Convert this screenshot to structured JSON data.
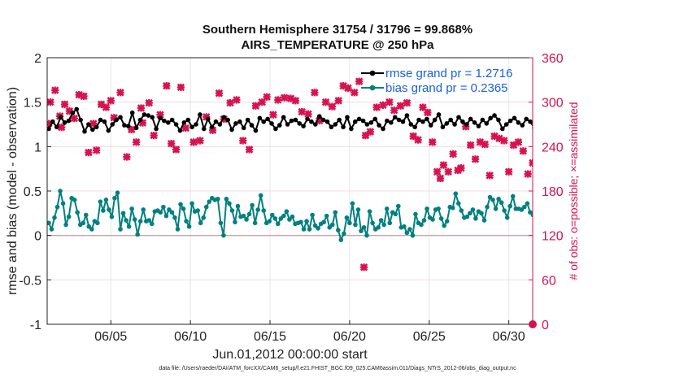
{
  "figure": {
    "title_line1": "Southern Hemisphere 31754 / 31796 = 99.868%",
    "title_line2": "AIRS_TEMPERATURE @ 250 hPa",
    "footnote": "data file: /Users/raeder/DAI/ATM_forcXX/CAM6_setup/f.e21.FHIST_BGC.f09_025.CAM6assim.011/Diags_NTrS_2012-06/obs_diag_output.nc"
  },
  "chart_data": {
    "type": "line",
    "xlabel": "Jun.01,2012 00:00:00 start",
    "ylabel_left": "rmse and bias (model - observation)",
    "ylabel_right": "# of obs: o=possible; ×=assimilated",
    "x_range_days": [
      0,
      30.5
    ],
    "xticks": [
      {
        "day": 4,
        "label": "06/05"
      },
      {
        "day": 9,
        "label": "06/10"
      },
      {
        "day": 14,
        "label": "06/15"
      },
      {
        "day": 19,
        "label": "06/20"
      },
      {
        "day": 24,
        "label": "06/25"
      },
      {
        "day": 29,
        "label": "06/30"
      }
    ],
    "ylim_left": [
      -1,
      2
    ],
    "yticks_left": [
      -1,
      -0.5,
      0,
      0.5,
      1,
      1.5,
      2
    ],
    "ytick_labels_left": [
      "-1",
      "-0.5",
      "0",
      "0.5",
      "1",
      "1.5",
      "2"
    ],
    "ylim_right": [
      0,
      360
    ],
    "yticks_right": [
      0,
      60,
      120,
      180,
      240,
      300,
      360
    ],
    "grid": true,
    "legend_position": "top-right",
    "zero_line": true,
    "time_step_days": 0.25,
    "series": [
      {
        "name": "rmse grand pr = 1.2716",
        "axis": "left",
        "color": "#000000",
        "marker": "circle",
        "values": [
          1.2,
          1.28,
          1.22,
          1.33,
          1.27,
          1.29,
          1.38,
          1.42,
          1.3,
          1.17,
          1.25,
          1.19,
          1.22,
          1.3,
          1.28,
          1.18,
          1.25,
          1.3,
          1.33,
          1.24,
          1.23,
          1.38,
          1.21,
          1.3,
          1.36,
          1.35,
          1.33,
          1.2,
          1.32,
          1.29,
          1.27,
          1.3,
          1.25,
          1.18,
          1.27,
          1.3,
          1.22,
          1.25,
          1.36,
          1.2,
          1.31,
          1.22,
          1.28,
          1.25,
          1.33,
          1.3,
          1.19,
          1.26,
          1.28,
          1.21,
          1.3,
          1.24,
          1.18,
          1.32,
          1.28,
          1.31,
          1.26,
          1.2,
          1.24,
          1.33,
          1.25,
          1.29,
          1.3,
          1.26,
          1.23,
          1.31,
          1.28,
          1.25,
          1.34,
          1.3,
          1.28,
          1.22,
          1.25,
          1.3,
          1.22,
          1.33,
          1.2,
          1.28,
          1.31,
          1.29,
          1.25,
          1.27,
          1.31,
          1.24,
          1.2,
          1.29,
          1.27,
          1.33,
          1.3,
          1.28,
          1.35,
          1.25,
          1.22,
          1.3,
          1.28,
          1.31,
          1.24,
          1.3,
          1.36,
          1.22,
          1.26,
          1.3,
          1.25,
          1.33,
          1.28,
          1.25,
          1.31,
          1.27,
          1.23,
          1.3,
          1.26,
          1.32,
          1.35,
          1.3,
          1.2,
          1.25,
          1.29,
          1.32,
          1.27,
          1.24,
          1.31,
          1.28,
          1.21,
          1.3,
          1.26,
          1.33,
          1.29,
          1.24,
          1.3,
          1.27,
          1.25,
          1.28,
          1.31,
          1.3,
          1.27,
          1.22,
          1.28,
          1.3,
          1.23,
          1.28,
          1.26,
          1.31,
          1.29,
          1.32,
          1.2,
          1.3,
          1.25,
          1.27,
          1.28,
          1.25,
          1.24,
          1.29,
          1.3,
          1.27,
          1.22,
          1.31,
          1.28,
          1.27,
          1.32,
          1.31,
          1.28,
          1.25,
          1.31,
          1.32,
          1.25,
          1.27,
          1.28,
          1.3,
          1.33,
          1.26,
          1.25,
          1.28,
          1.3,
          1.22,
          1.28,
          1.25,
          1.28,
          1.3,
          1.29,
          1.31,
          1.33,
          1.37,
          1.39,
          1.36,
          1.3,
          1.24,
          1.37,
          1.3,
          1.25,
          1.31,
          1.31,
          1.28,
          1.3,
          1.26,
          1.29,
          1.31,
          1.27,
          1.28,
          1.29,
          1.31,
          1.24,
          1.2,
          1.28,
          1.3,
          1.26,
          1.28,
          1.29,
          1.25,
          1.28,
          1.26,
          1.22,
          1.28,
          1.25,
          1.23,
          1.28,
          1.33,
          1.3,
          1.25,
          1.28,
          1.31,
          1.26,
          1.28,
          1.23,
          1.25,
          1.3,
          1.28,
          1.25,
          1.29,
          1.31,
          1.34,
          1.3,
          1.28,
          1.24,
          1.28,
          1.25,
          1.3,
          1.28,
          1.25,
          1.26,
          1.28,
          1.3,
          1.32,
          1.28,
          1.22,
          1.28,
          1.25,
          1.3,
          1.26,
          1.29,
          1.38,
          1.33,
          1.28,
          1.31,
          1.27,
          1.25,
          1.3,
          1.33,
          1.28,
          1.24,
          1.3,
          1.28,
          1.35,
          1.32,
          1.27,
          1.3,
          1.36,
          1.28,
          1.24,
          1.3,
          1.25,
          1.21,
          1.27,
          1.3,
          1.25,
          1.28,
          1.31,
          1.29,
          1.22,
          1.28,
          1.33,
          1.3,
          1.26,
          1.28,
          1.31,
          1.2,
          1.27,
          1.29,
          1.31,
          1.28,
          1.3,
          1.22,
          1.25,
          1.3,
          1.29,
          1.33,
          1.26,
          1.29,
          1.32,
          1.28,
          1.25,
          1.3,
          1.29,
          1.26,
          1.32,
          1.29,
          1.25,
          1.31,
          1.27,
          1.3,
          1.24,
          1.27,
          1.3,
          1.2,
          1.28,
          1.25,
          1.3,
          1.27,
          1.33,
          1.3,
          1.36,
          1.28,
          1.27,
          1.25,
          1.28,
          1.3,
          1.33,
          1.22,
          1.27,
          1.22,
          1.28,
          1.25,
          1.34,
          1.3,
          1.25,
          1.3,
          1.31,
          1.2,
          1.25,
          1.29,
          1.28,
          1.26,
          1.38,
          1.33,
          1.35,
          1.29,
          1.32,
          1.24,
          1.26,
          1.22,
          1.28,
          1.25,
          1.3,
          1.27,
          1.33,
          1.28,
          1.25,
          1.3,
          1.27,
          1.23,
          1.28,
          1.26,
          1.3,
          1.28,
          1.35,
          1.33,
          1.28,
          1.26,
          1.3,
          1.24,
          1.27,
          1.25,
          1.31,
          1.29,
          1.25,
          1.3,
          1.34,
          1.28,
          1.31,
          1.27,
          1.25,
          1.28,
          1.3,
          1.26,
          1.22,
          1.25,
          1.3,
          1.28,
          1.33,
          1.36,
          1.31,
          1.25,
          1.28,
          1.33,
          1.3,
          1.27,
          1.25,
          1.29,
          1.22,
          1.26,
          1.24,
          1.3,
          1.31,
          1.29,
          1.25,
          1.3,
          1.26,
          1.28,
          1.33,
          1.3,
          1.25,
          1.27,
          1.22,
          1.28,
          1.26,
          1.25,
          1.3,
          1.28,
          1.31,
          1.26,
          1.23,
          1.25,
          1.28,
          1.25,
          1.3,
          1.27,
          1.33,
          1.28,
          1.25,
          1.3,
          1.26,
          1.24,
          1.3,
          1.28,
          1.25,
          1.26,
          1.31,
          1.29,
          1.27,
          1.24,
          1.2,
          1.26,
          1.3,
          1.28,
          1.25,
          1.3,
          1.28,
          1.31,
          1.27,
          1.22,
          1.28,
          1.3,
          1.25,
          1.27,
          1.28,
          1.25,
          1.29,
          1.27,
          1.32,
          1.3,
          1.25,
          1.28,
          1.31,
          1.27,
          1.25,
          1.3,
          1.28,
          1.25,
          1.23,
          1.29,
          1.25,
          1.28,
          1.3,
          1.26,
          1.23,
          1.28,
          1.27,
          1.33,
          1.3,
          1.26,
          1.28,
          1.24,
          1.3,
          1.29,
          1.25,
          1.27,
          1.31,
          1.28,
          1.22,
          1.25,
          1.29,
          1.31,
          1.28,
          1.25
        ]
      },
      {
        "name": "bias grand pr = 0.2365",
        "axis": "left",
        "color": "#008080",
        "marker": "circle",
        "values": [
          0.14,
          0.07,
          0.2,
          0.32,
          0.5,
          0.36,
          0.12,
          0.21,
          0.42,
          0.4,
          0.26,
          0.12,
          0.14,
          0.23,
          0.1,
          0.07,
          0.16,
          0.14,
          0.38,
          0.28,
          0.4,
          0.29,
          0.21,
          0.42,
          0.48,
          0.07,
          0.25,
          0.17,
          0.1,
          0.3,
          0.18,
          0.01,
          0.16,
          0.29,
          0.16,
          0.17,
          0.13,
          0.27,
          0.28,
          0.26,
          0.32,
          0.22,
          0.29,
          0.26,
          0.2,
          0.07,
          0.35,
          0.3,
          0.16,
          0.1,
          0.36,
          0.27,
          0.28,
          0.14,
          0.2,
          0.32,
          0.38,
          0.42,
          0.4,
          0.41,
          0.14,
          0.0,
          0.41,
          0.36,
          0.28,
          0.15,
          0.33,
          0.21,
          0.22,
          0.18,
          0.24,
          0.34,
          0.14,
          0.29,
          0.45,
          0.28,
          0.14,
          0.16,
          0.23,
          0.19,
          0.13,
          0.19,
          0.22,
          0.27,
          0.18,
          0.21,
          0.13,
          0.14,
          0.15,
          0.07,
          0.16,
          0.07,
          0.23,
          0.11,
          0.08,
          0.13,
          0.15,
          0.22,
          0.09,
          0.12,
          0.26,
          0.06,
          -0.05,
          0.02,
          0.2,
          0.14,
          0.36,
          0.12,
          0.29,
          0.05,
          0.09,
          0.0,
          0.27,
          0.14,
          0.07,
          0.09,
          0.17,
          0.12,
          0.3,
          0.14,
          0.26,
          0.24,
          0.33,
          0.09,
          0.1,
          0.03,
          0.07,
          0.0,
          0.24,
          0.14,
          0.12,
          0.17,
          0.3,
          0.2,
          0.18,
          0.29,
          0.3,
          0.19,
          0.11,
          0.16,
          0.32,
          0.31,
          0.47,
          0.36,
          0.28,
          0.2,
          0.21,
          0.25,
          0.29,
          0.19,
          0.27,
          0.25,
          0.17,
          0.32,
          0.43,
          0.4,
          0.3,
          0.41,
          0.37,
          0.28,
          0.2,
          0.33,
          0.44,
          0.3,
          0.3,
          0.29,
          0.32,
          0.36,
          0.26,
          0.23,
          0.25,
          0.22
        ],
        "x_step_days_override": 0.18
      }
    ],
    "obs_assimilated": {
      "axis": "right",
      "color": "#d6124f",
      "marker": "x",
      "label": "×=assimilated",
      "points": [
        [
          0.1,
          271
        ],
        [
          0.2,
          300
        ],
        [
          0.5,
          316
        ],
        [
          0.8,
          281
        ],
        [
          0.9,
          266
        ],
        [
          1.1,
          297
        ],
        [
          1.4,
          288
        ],
        [
          1.7,
          278
        ],
        [
          2.0,
          310
        ],
        [
          2.3,
          308
        ],
        [
          2.6,
          232
        ],
        [
          2.9,
          271
        ],
        [
          3.1,
          235
        ],
        [
          3.4,
          297
        ],
        [
          3.7,
          293
        ],
        [
          4.0,
          302
        ],
        [
          4.2,
          279
        ],
        [
          4.6,
          313
        ],
        [
          5.0,
          226
        ],
        [
          5.3,
          263
        ],
        [
          5.6,
          246
        ],
        [
          5.9,
          292
        ],
        [
          6.0,
          272
        ],
        [
          6.4,
          299
        ],
        [
          6.7,
          255
        ],
        [
          7.1,
          283
        ],
        [
          7.5,
          322
        ],
        [
          7.8,
          244
        ],
        [
          8.1,
          236
        ],
        [
          8.4,
          320
        ],
        [
          8.7,
          265
        ],
        [
          9.2,
          246
        ],
        [
          9.6,
          248
        ],
        [
          10.0,
          280
        ],
        [
          10.4,
          262
        ],
        [
          10.8,
          312
        ],
        [
          11.1,
          277
        ],
        [
          11.5,
          299
        ],
        [
          11.9,
          303
        ],
        [
          12.3,
          248
        ],
        [
          12.7,
          236
        ],
        [
          13.1,
          295
        ],
        [
          13.5,
          300
        ],
        [
          13.8,
          307
        ],
        [
          14.2,
          283
        ],
        [
          14.5,
          303
        ],
        [
          14.9,
          306
        ],
        [
          15.3,
          305
        ],
        [
          15.6,
          302
        ],
        [
          16.0,
          287
        ],
        [
          16.4,
          284
        ],
        [
          16.8,
          313
        ],
        [
          17.1,
          275
        ],
        [
          17.5,
          300
        ],
        [
          17.9,
          294
        ],
        [
          18.3,
          302
        ],
        [
          18.6,
          322
        ],
        [
          18.9,
          319
        ],
        [
          19.3,
          313
        ],
        [
          19.6,
          328
        ],
        [
          20.0,
          255
        ],
        [
          20.3,
          260
        ],
        [
          20.7,
          293
        ],
        [
          21.1,
          296
        ],
        [
          21.5,
          300
        ],
        [
          21.8,
          289
        ],
        [
          22.2,
          295
        ],
        [
          22.6,
          299
        ],
        [
          23.0,
          254
        ],
        [
          23.3,
          249
        ],
        [
          23.6,
          293
        ],
        [
          23.9,
          286
        ],
        [
          24.2,
          246
        ],
        [
          24.5,
          206
        ],
        [
          24.7,
          197
        ],
        [
          24.9,
          215
        ],
        [
          25.2,
          206
        ],
        [
          25.5,
          230
        ],
        [
          25.8,
          208
        ],
        [
          26.0,
          211
        ],
        [
          26.3,
          267
        ],
        [
          26.6,
          242
        ],
        [
          26.9,
          223
        ],
        [
          27.2,
          246
        ],
        [
          27.5,
          243
        ],
        [
          27.8,
          201
        ],
        [
          28.1,
          254
        ],
        [
          28.4,
          251
        ],
        [
          28.7,
          248
        ],
        [
          29.0,
          206
        ],
        [
          29.3,
          242
        ],
        [
          29.6,
          246
        ],
        [
          29.9,
          234
        ],
        [
          30.2,
          203
        ],
        [
          30.5,
          218
        ],
        [
          30.8,
          232
        ],
        [
          19.9,
          77
        ]
      ]
    },
    "obs_possible": {
      "axis": "right",
      "color": "#d6124f",
      "marker": "o",
      "label": "o=possible",
      "points": [
        [
          31.2,
          0
        ]
      ]
    }
  }
}
